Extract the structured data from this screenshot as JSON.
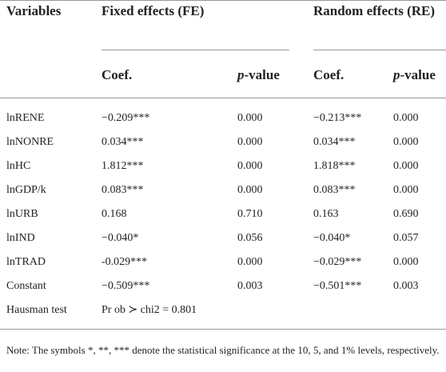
{
  "header": {
    "variables": "Variables",
    "fixed_effects": "Fixed effects (FE)",
    "random_effects": "Random effects (RE)",
    "subheaders": [
      "Coef.",
      "p-value",
      "Coef.",
      "p-value"
    ]
  },
  "table": {
    "rows": [
      [
        "lnRENE",
        "−0.209***",
        "0.000",
        "−0.213***",
        "0.000"
      ],
      [
        "lnNONRE",
        "0.034***",
        "0.000",
        "0.034***",
        "0.000"
      ],
      [
        "lnHC",
        "1.812***",
        "0.000",
        "1.818***",
        "0.000"
      ],
      [
        "lnGDP/k",
        "0.083***",
        "0.000",
        "0.083***",
        "0.000"
      ],
      [
        "lnURB",
        "0.168",
        "0.710",
        "0.163",
        "0.690"
      ],
      [
        "lnIND",
        "−0.040*",
        "0.056",
        "−0.040*",
        "0.057"
      ],
      [
        "lnTRAD",
        "-0.029***",
        "0.000",
        "−0.029***",
        "0.000"
      ],
      [
        "Constant",
        "−0.509***",
        "0.003",
        "−0.501***",
        "0.003"
      ],
      [
        "Hausman test",
        "Pr ob ≻ chi2 = 0.801"
      ]
    ]
  },
  "note": "Note: The symbols *, **, *** denote the statistical significance at the 10, 5, and 1% levels, respectively."
}
